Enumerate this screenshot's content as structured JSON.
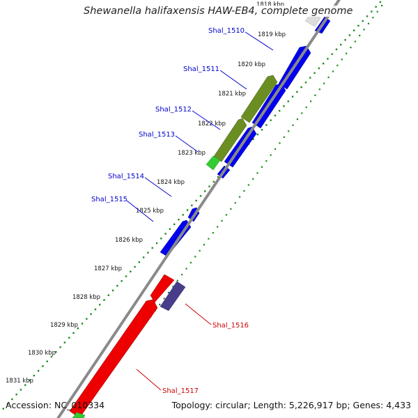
{
  "title": "Shewanella halifaxensis HAW-EB4, complete genome",
  "footer": {
    "accession": "Accession: NC_010334",
    "summary": "Topology: circular; Length: 5,226,917 bp; Genes: 4,433"
  },
  "colors": {
    "backbone": "#8a8a8a",
    "tick_dots": "#1e8a1e",
    "gene_blue": "#0000ee",
    "gene_olive": "#6b8e23",
    "gene_green": "#33cc33",
    "gene_red": "#ee0000",
    "gene_purple": "#483d8b",
    "label_forward": "#0000cc",
    "label_reverse": "#cc0000"
  },
  "position_labels": [
    {
      "label": "1818 kbp"
    },
    {
      "label": "1819 kbp"
    },
    {
      "label": "1820 kbp"
    },
    {
      "label": "1821 kbp"
    },
    {
      "label": "1822 kbp"
    },
    {
      "label": "1823 kbp"
    },
    {
      "label": "1824 kbp"
    },
    {
      "label": "1825 kbp"
    },
    {
      "label": "1826 kbp"
    },
    {
      "label": "1827 kbp"
    },
    {
      "label": "1828 kbp"
    },
    {
      "label": "1829 kbp"
    },
    {
      "label": "1830 kbp"
    },
    {
      "label": "1831 kbp"
    }
  ],
  "gene_labels": [
    {
      "name": "Shal_1510",
      "strand": "forward"
    },
    {
      "name": "Shal_1511",
      "strand": "forward"
    },
    {
      "name": "Shal_1512",
      "strand": "forward"
    },
    {
      "name": "Shal_1513",
      "strand": "forward"
    },
    {
      "name": "Shal_1514",
      "strand": "forward"
    },
    {
      "name": "Shal_1515",
      "strand": "forward"
    },
    {
      "name": "Shal_1516",
      "strand": "reverse"
    },
    {
      "name": "Shal_1517",
      "strand": "reverse"
    }
  ]
}
